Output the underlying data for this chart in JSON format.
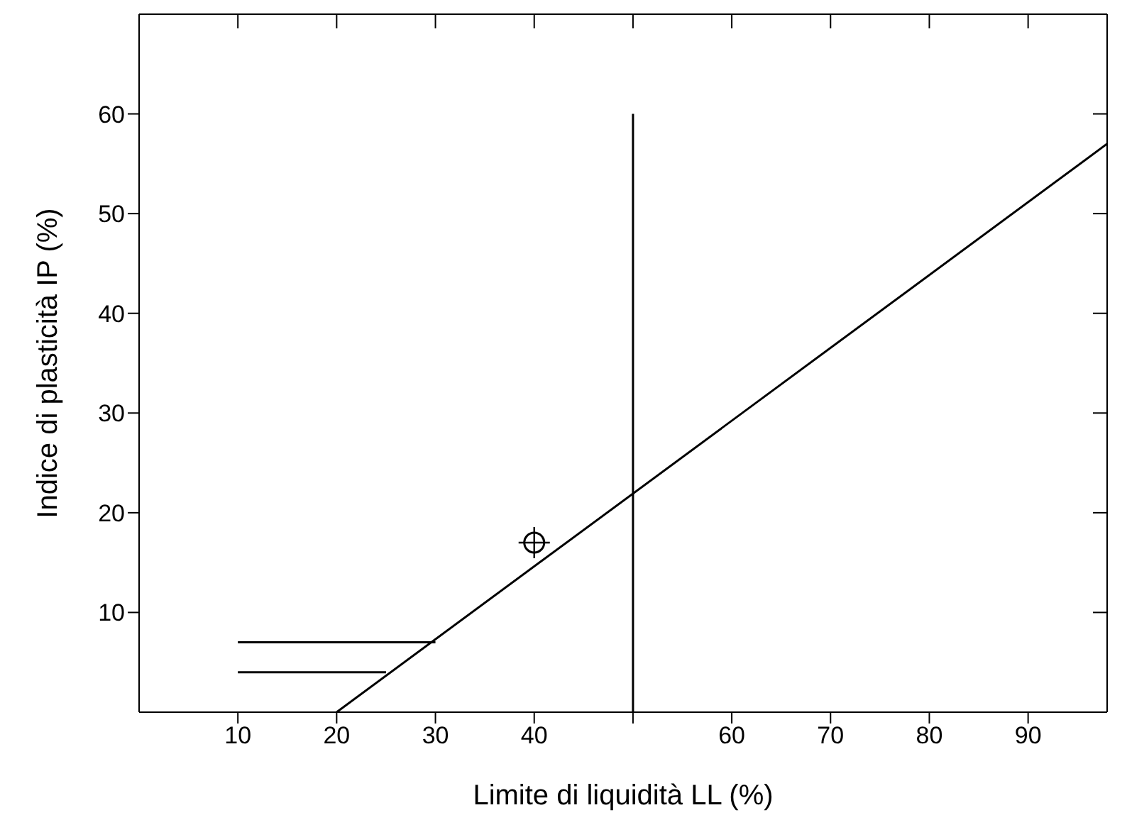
{
  "chart_data": {
    "type": "line",
    "xlabel": "Limite di liquidità  LL (%)",
    "ylabel": "Indice di plasticità  IP  (%)",
    "xlim": [
      0,
      98
    ],
    "ylim": [
      0,
      70
    ],
    "xticks": [
      10,
      20,
      30,
      40,
      {
        "value": 50,
        "label": null
      },
      60,
      70,
      80,
      90
    ],
    "yticks": [
      10,
      20,
      30,
      40,
      50,
      60
    ],
    "marker": "none",
    "line_style": "solid",
    "series": [
      {
        "color": "#000000",
        "x": [
          20,
          98
        ],
        "values": [
          0,
          57
        ]
      },
      {
        "color": "#000000",
        "x": [
          50,
          50
        ],
        "values": [
          0,
          60
        ]
      },
      {
        "color": "#000000",
        "x": [
          10,
          30
        ],
        "values": [
          7,
          7
        ]
      },
      {
        "color": "#000000",
        "x": [
          10,
          25
        ],
        "values": [
          4,
          4
        ]
      },
      {
        "type": "scatter",
        "color": "#000000",
        "marker": "circle",
        "x": [
          40
        ],
        "values": [
          17
        ]
      }
    ]
  }
}
